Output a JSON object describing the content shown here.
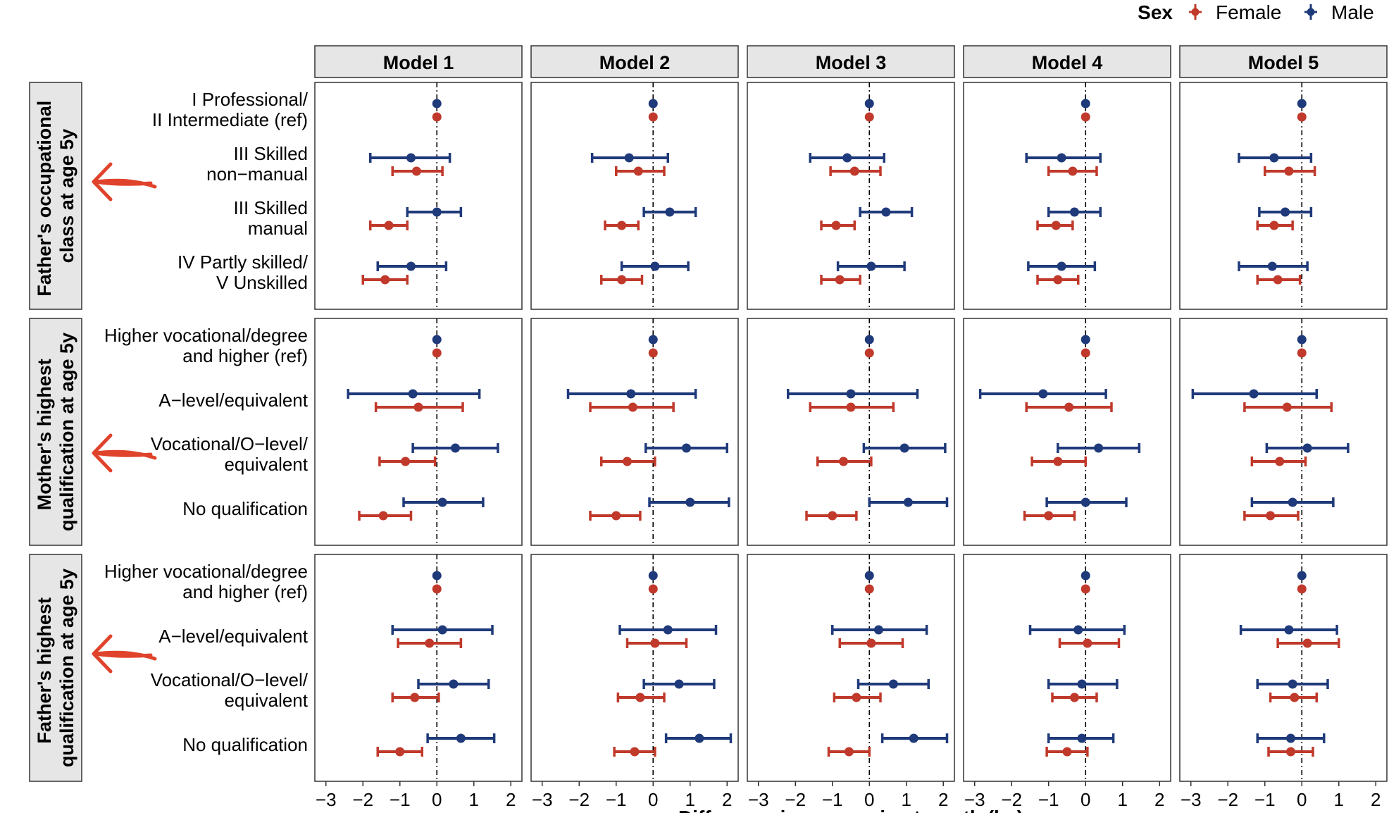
{
  "legend": {
    "title": "Sex",
    "items": [
      {
        "label": "Female",
        "color": "#c0392b"
      },
      {
        "label": "Male",
        "color": "#1f3a7a"
      }
    ]
  },
  "x_axis_title": "Difference in mean grip strength (kg)",
  "chart_data": {
    "type": "forest",
    "xlim": [
      -3.3,
      2.3
    ],
    "x_ticks": [
      -3,
      -2,
      -1,
      0,
      1,
      2
    ],
    "x_tick_labels": [
      "−3",
      "−2",
      "−1",
      "0",
      "1",
      "2"
    ],
    "reference_line": 0,
    "models": [
      "Model 1",
      "Model 2",
      "Model 3",
      "Model 4",
      "Model 5"
    ],
    "colors": {
      "Female": "#c0392b",
      "Male": "#1f3a7a"
    },
    "legend_position": "top-right",
    "groups": [
      {
        "title_lines": [
          "Father's occupational",
          "class at age 5y"
        ],
        "categories": [
          {
            "label_lines": [
              "I Professional/",
              "II Intermediate (ref)"
            ]
          },
          {
            "label_lines": [
              "III Skilled",
              "non−manual"
            ]
          },
          {
            "label_lines": [
              "III Skilled",
              "manual"
            ]
          },
          {
            "label_lines": [
              "IV Partly skilled/",
              "V Unskilled"
            ]
          }
        ],
        "estimates": {
          "Male": [
            [
              [
                0,
                0,
                0
              ],
              [
                -0.7,
                -1.8,
                0.35
              ],
              [
                0,
                -0.8,
                0.65
              ],
              [
                -0.7,
                -1.6,
                0.25
              ]
            ],
            [
              [
                0,
                0,
                0
              ],
              [
                -0.65,
                -1.65,
                0.4
              ],
              [
                0.45,
                -0.25,
                1.15
              ],
              [
                0.05,
                -0.85,
                0.95
              ]
            ],
            [
              [
                0,
                0,
                0
              ],
              [
                -0.6,
                -1.6,
                0.4
              ],
              [
                0.45,
                -0.25,
                1.15
              ],
              [
                0.05,
                -0.85,
                0.95
              ]
            ],
            [
              [
                0,
                0,
                0
              ],
              [
                -0.65,
                -1.6,
                0.4
              ],
              [
                -0.3,
                -1.0,
                0.4
              ],
              [
                -0.65,
                -1.55,
                0.25
              ]
            ],
            [
              [
                0,
                0,
                0
              ],
              [
                -0.75,
                -1.7,
                0.25
              ],
              [
                -0.45,
                -1.15,
                0.25
              ],
              [
                -0.8,
                -1.7,
                0.15
              ]
            ]
          ],
          "Female": [
            [
              [
                0,
                0,
                0
              ],
              [
                -0.55,
                -1.2,
                0.15
              ],
              [
                -1.3,
                -1.8,
                -0.8
              ],
              [
                -1.4,
                -2.0,
                -0.8
              ]
            ],
            [
              [
                0,
                0,
                0
              ],
              [
                -0.4,
                -1.0,
                0.3
              ],
              [
                -0.85,
                -1.3,
                -0.4
              ],
              [
                -0.85,
                -1.4,
                -0.3
              ]
            ],
            [
              [
                0,
                0,
                0
              ],
              [
                -0.4,
                -1.05,
                0.3
              ],
              [
                -0.9,
                -1.3,
                -0.4
              ],
              [
                -0.8,
                -1.3,
                -0.25
              ]
            ],
            [
              [
                0,
                0,
                0
              ],
              [
                -0.35,
                -1.0,
                0.3
              ],
              [
                -0.8,
                -1.3,
                -0.35
              ],
              [
                -0.75,
                -1.3,
                -0.2
              ]
            ],
            [
              [
                0,
                0,
                0
              ],
              [
                -0.35,
                -1.0,
                0.35
              ],
              [
                -0.75,
                -1.2,
                -0.25
              ],
              [
                -0.65,
                -1.2,
                -0.05
              ]
            ]
          ]
        }
      },
      {
        "title_lines": [
          "Mother's highest",
          "qualification at age 5y"
        ],
        "categories": [
          {
            "label_lines": [
              "Higher vocational/degree",
              "and higher (ref)"
            ]
          },
          {
            "label_lines": [
              "A−level/equivalent"
            ]
          },
          {
            "label_lines": [
              "Vocational/O−level/",
              "equivalent"
            ]
          },
          {
            "label_lines": [
              "No qualification"
            ]
          }
        ],
        "estimates": {
          "Male": [
            [
              [
                0,
                0,
                0
              ],
              [
                -0.65,
                -2.4,
                1.15
              ],
              [
                0.5,
                -0.65,
                1.65
              ],
              [
                0.15,
                -0.9,
                1.25
              ]
            ],
            [
              [
                0,
                0,
                0
              ],
              [
                -0.6,
                -2.3,
                1.15
              ],
              [
                0.9,
                -0.2,
                2.0
              ],
              [
                1.0,
                -0.1,
                2.05
              ]
            ],
            [
              [
                0,
                0,
                0
              ],
              [
                -0.5,
                -2.2,
                1.3
              ],
              [
                0.95,
                -0.15,
                2.05
              ],
              [
                1.05,
                0.0,
                2.1
              ]
            ],
            [
              [
                0,
                0,
                0
              ],
              [
                -1.15,
                -2.85,
                0.55
              ],
              [
                0.35,
                -0.75,
                1.45
              ],
              [
                0.0,
                -1.05,
                1.1
              ]
            ],
            [
              [
                0,
                0,
                0
              ],
              [
                -1.3,
                -2.95,
                0.4
              ],
              [
                0.15,
                -0.95,
                1.25
              ],
              [
                -0.25,
                -1.35,
                0.85
              ]
            ]
          ],
          "Female": [
            [
              [
                0,
                0,
                0
              ],
              [
                -0.5,
                -1.65,
                0.7
              ],
              [
                -0.85,
                -1.55,
                -0.05
              ],
              [
                -1.45,
                -2.1,
                -0.7
              ]
            ],
            [
              [
                0,
                0,
                0
              ],
              [
                -0.55,
                -1.7,
                0.55
              ],
              [
                -0.7,
                -1.4,
                0.05
              ],
              [
                -1.0,
                -1.7,
                -0.35
              ]
            ],
            [
              [
                0,
                0,
                0
              ],
              [
                -0.5,
                -1.6,
                0.65
              ],
              [
                -0.7,
                -1.4,
                0.05
              ],
              [
                -1.0,
                -1.7,
                -0.35
              ]
            ],
            [
              [
                0,
                0,
                0
              ],
              [
                -0.45,
                -1.6,
                0.7
              ],
              [
                -0.75,
                -1.45,
                0.0
              ],
              [
                -1.0,
                -1.65,
                -0.3
              ]
            ],
            [
              [
                0,
                0,
                0
              ],
              [
                -0.4,
                -1.55,
                0.8
              ],
              [
                -0.6,
                -1.35,
                0.1
              ],
              [
                -0.85,
                -1.55,
                -0.1
              ]
            ]
          ]
        }
      },
      {
        "title_lines": [
          "Father's highest",
          "qualification at age 5y"
        ],
        "categories": [
          {
            "label_lines": [
              "Higher vocational/degree",
              "and higher (ref)"
            ]
          },
          {
            "label_lines": [
              "A−level/equivalent"
            ]
          },
          {
            "label_lines": [
              "Vocational/O−level/",
              "equivalent"
            ]
          },
          {
            "label_lines": [
              "No qualification"
            ]
          }
        ],
        "estimates": {
          "Male": [
            [
              [
                0,
                0,
                0
              ],
              [
                0.15,
                -1.2,
                1.5
              ],
              [
                0.45,
                -0.5,
                1.4
              ],
              [
                0.65,
                -0.25,
                1.55
              ]
            ],
            [
              [
                0,
                0,
                0
              ],
              [
                0.4,
                -0.9,
                1.7
              ],
              [
                0.7,
                -0.25,
                1.65
              ],
              [
                1.25,
                0.35,
                2.1
              ]
            ],
            [
              [
                0,
                0,
                0
              ],
              [
                0.25,
                -1.0,
                1.55
              ],
              [
                0.65,
                -0.3,
                1.6
              ],
              [
                1.2,
                0.35,
                2.1
              ]
            ],
            [
              [
                0,
                0,
                0
              ],
              [
                -0.2,
                -1.5,
                1.05
              ],
              [
                -0.1,
                -1.0,
                0.85
              ],
              [
                -0.1,
                -1.0,
                0.75
              ]
            ],
            [
              [
                0,
                0,
                0
              ],
              [
                -0.35,
                -1.65,
                0.95
              ],
              [
                -0.25,
                -1.2,
                0.7
              ],
              [
                -0.3,
                -1.2,
                0.6
              ]
            ]
          ],
          "Female": [
            [
              [
                0,
                0,
                0
              ],
              [
                -0.2,
                -1.05,
                0.65
              ],
              [
                -0.6,
                -1.2,
                0.05
              ],
              [
                -1.0,
                -1.6,
                -0.4
              ]
            ],
            [
              [
                0,
                0,
                0
              ],
              [
                0.05,
                -0.7,
                0.9
              ],
              [
                -0.35,
                -0.95,
                0.3
              ],
              [
                -0.5,
                -1.05,
                0.05
              ]
            ],
            [
              [
                0,
                0,
                0
              ],
              [
                0.05,
                -0.8,
                0.9
              ],
              [
                -0.35,
                -0.95,
                0.3
              ],
              [
                -0.55,
                -1.1,
                0.0
              ]
            ],
            [
              [
                0,
                0,
                0
              ],
              [
                0.05,
                -0.7,
                0.9
              ],
              [
                -0.3,
                -0.9,
                0.3
              ],
              [
                -0.5,
                -1.05,
                0.05
              ]
            ],
            [
              [
                0,
                0,
                0
              ],
              [
                0.15,
                -0.65,
                1.0
              ],
              [
                -0.2,
                -0.85,
                0.4
              ],
              [
                -0.3,
                -0.9,
                0.3
              ]
            ]
          ]
        }
      }
    ]
  }
}
